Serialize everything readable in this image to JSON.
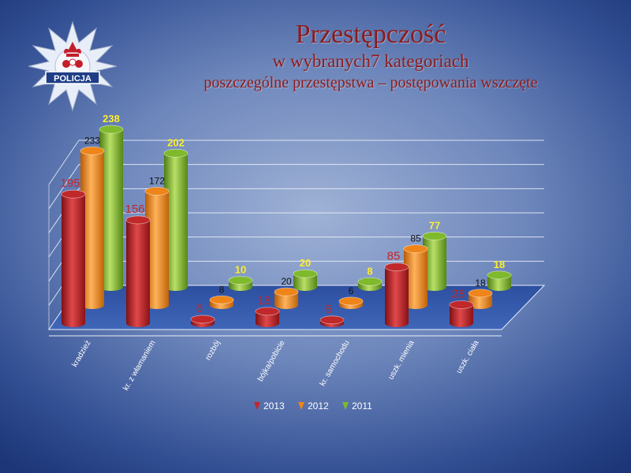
{
  "title": {
    "line1": "Przestępczość",
    "line2": "w wybranych7 kategoriach",
    "line3": "poszczególne przestępstwa – postępowania wszczęte"
  },
  "logo_text": "POLICJA",
  "colors": {
    "2013": "#c0282a",
    "2012": "#ef8418",
    "2011": "#7fb92c",
    "title": "#8e1a1a"
  },
  "chart_data": {
    "type": "bar",
    "categories": [
      "kradzież",
      "kr. z włamaniem",
      "rozbój",
      "bójka/pobicie",
      "kr. samochodu",
      "uszk. mienia",
      "uszk. ciała"
    ],
    "series": [
      {
        "name": "2013",
        "values": [
          195,
          156,
          6,
          18,
          5,
          85,
          28
        ]
      },
      {
        "name": "2012",
        "values": [
          233,
          172,
          8,
          20,
          6,
          85,
          18
        ]
      },
      {
        "name": "2011",
        "values": [
          238,
          202,
          10,
          20,
          8,
          77,
          18
        ]
      }
    ],
    "legend_position": "bottom",
    "grid": true
  }
}
